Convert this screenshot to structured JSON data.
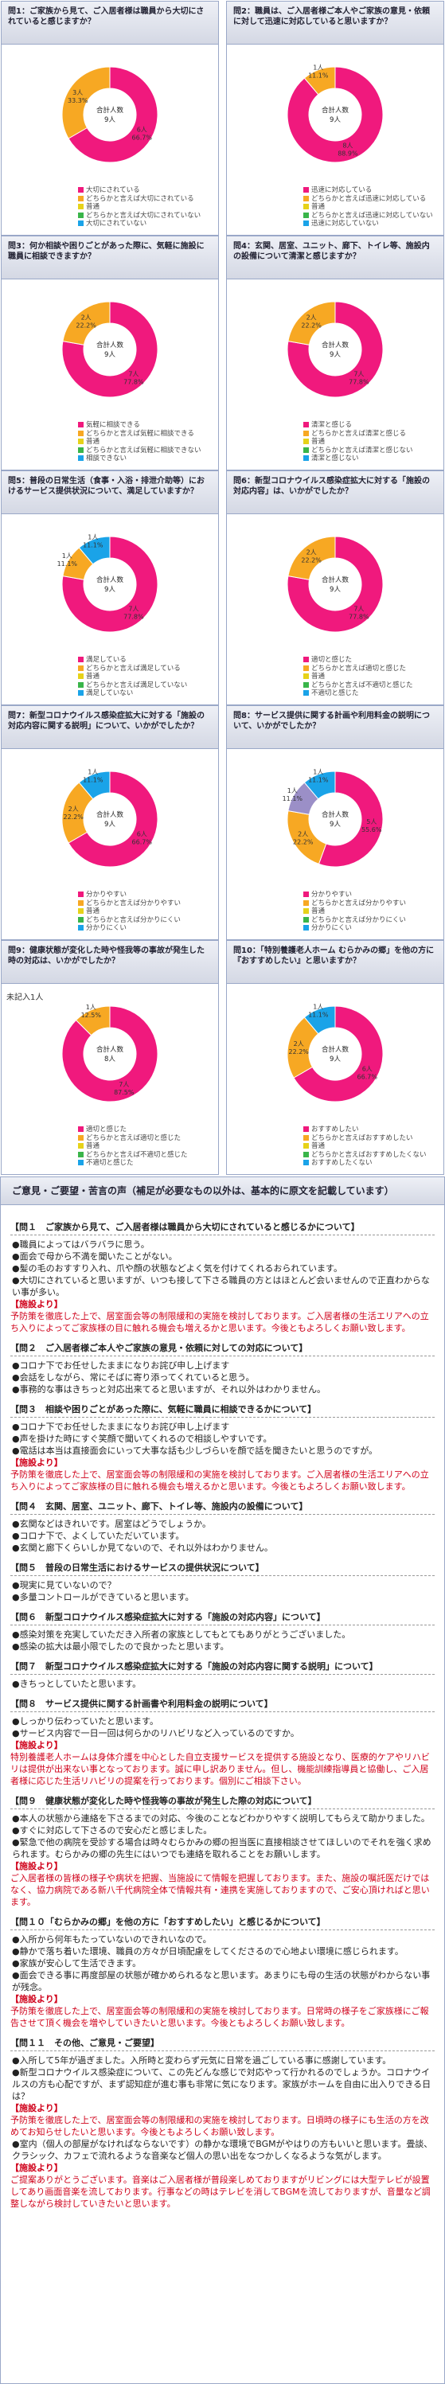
{
  "colors": {
    "magenta": "#f0197d",
    "orange": "#f7a823",
    "yellow": "#e6d219",
    "blue": "#1aa3e8",
    "green": "#3ab54a",
    "purple": "#9b8fc7",
    "gray": "#bbbbbb"
  },
  "center_label": {
    "line1": "合計人数",
    "unit": "人"
  },
  "cards": [
    {
      "title": "問1：ご家族から見て、ご入居者様は職員から大切にされていると感じますか？",
      "total": "9人",
      "slices": [
        {
          "n": "6人",
          "p": "66.7%",
          "v": 6,
          "c": "magenta"
        },
        {
          "n": "3人",
          "p": "33.3%",
          "v": 3,
          "c": "orange"
        }
      ],
      "legend": [
        "大切にされている",
        "どちらかと言えば大切にされている",
        "普通",
        "どちらかと言えば大切にされていない",
        "大切にされていない"
      ],
      "legend_colors": [
        "magenta",
        "orange",
        "yellow",
        "green",
        "blue"
      ]
    },
    {
      "title": "問2：職員は、ご入居者様ご本人やご家族の意見・依頼に対して迅速に対応していると思いますか？",
      "total": "9人",
      "slices": [
        {
          "n": "8人",
          "p": "88.9%",
          "v": 8,
          "c": "magenta"
        },
        {
          "n": "1人",
          "p": "11.1%",
          "v": 1,
          "c": "orange"
        }
      ],
      "legend": [
        "迅速に対応している",
        "どちらかと言えば迅速に対応している",
        "普通",
        "どちらかと言えば迅速に対応していない",
        "迅速に対応していない"
      ],
      "legend_colors": [
        "magenta",
        "orange",
        "yellow",
        "green",
        "blue"
      ]
    },
    {
      "title": "問3：何か相談や困りごとがあった際に、気軽に施設に職員に相談できますか？",
      "total": "9人",
      "slices": [
        {
          "n": "7人",
          "p": "77.8%",
          "v": 7,
          "c": "magenta"
        },
        {
          "n": "2人",
          "p": "22.2%",
          "v": 2,
          "c": "orange"
        }
      ],
      "legend": [
        "気軽に相談できる",
        "どちらかと言えば気軽に相談できる",
        "普通",
        "どちらかと言えば気軽に相談できない",
        "相談できない"
      ],
      "legend_colors": [
        "magenta",
        "orange",
        "yellow",
        "green",
        "blue"
      ]
    },
    {
      "title": "問4：玄関、居室、ユニット、廊下、トイレ等、施設内の設備について清潔と感じますか？",
      "total": "9人",
      "slices": [
        {
          "n": "7人",
          "p": "77.8%",
          "v": 7,
          "c": "magenta"
        },
        {
          "n": "2人",
          "p": "22.2%",
          "v": 2,
          "c": "orange"
        }
      ],
      "legend": [
        "清潔と感じる",
        "どちらかと言えば清潔と感じる",
        "普通",
        "どちらかと言えば清潔と感じない",
        "清潔と感じない"
      ],
      "legend_colors": [
        "magenta",
        "orange",
        "yellow",
        "green",
        "blue"
      ]
    },
    {
      "title": "問5：普段の日常生活（食事・入浴・排泄介助等）におけるサービス提供状況について、満足していますか？",
      "total": "9人",
      "slices": [
        {
          "n": "7人",
          "p": "77.8%",
          "v": 7,
          "c": "magenta"
        },
        {
          "n": "1人",
          "p": "11.1%",
          "v": 1,
          "c": "orange"
        },
        {
          "n": "1人",
          "p": "11.1%",
          "v": 1,
          "c": "blue"
        }
      ],
      "legend": [
        "満足している",
        "どちらかと言えば満足している",
        "普通",
        "どちらかと言えば満足していない",
        "満足していない"
      ],
      "legend_colors": [
        "magenta",
        "orange",
        "yellow",
        "green",
        "blue"
      ]
    },
    {
      "title": "問6：新型コロナウイルス感染症拡大に対する「施設の対応内容」は、いかがでしたか？",
      "total": "9人",
      "slices": [
        {
          "n": "7人",
          "p": "77.8%",
          "v": 7,
          "c": "magenta"
        },
        {
          "n": "2人",
          "p": "22.2%",
          "v": 2,
          "c": "orange"
        }
      ],
      "legend": [
        "適切と感じた",
        "どちらかと言えば適切と感じた",
        "普通",
        "どちらかと言えば不適切と感じた",
        "不適切と感じた"
      ],
      "legend_colors": [
        "magenta",
        "orange",
        "yellow",
        "green",
        "blue"
      ]
    },
    {
      "title": "問7：新型コロナウイルス感染症拡大に対する「施設の対応内容に関する説明」について、いかがでしたか？",
      "total": "9人",
      "slices": [
        {
          "n": "6人",
          "p": "66.7%",
          "v": 6,
          "c": "magenta"
        },
        {
          "n": "2人",
          "p": "22.2%",
          "v": 2,
          "c": "orange"
        },
        {
          "n": "1人",
          "p": "11.1%",
          "v": 1,
          "c": "blue"
        }
      ],
      "legend": [
        "分かりやすい",
        "どちらかと言えば分かりやすい",
        "普通",
        "どちらかと言えば分かりにくい",
        "分かりにくい"
      ],
      "legend_colors": [
        "magenta",
        "orange",
        "yellow",
        "green",
        "blue"
      ]
    },
    {
      "title": "問8：サービス提供に関する計画や利用料金の説明について、いかがでしたか？",
      "total": "9人",
      "slices": [
        {
          "n": "5人",
          "p": "55.6%",
          "v": 5,
          "c": "magenta"
        },
        {
          "n": "2人",
          "p": "22.2%",
          "v": 2,
          "c": "orange"
        },
        {
          "n": "1人",
          "p": "11.1%",
          "v": 1,
          "c": "purple"
        },
        {
          "n": "1人",
          "p": "11.1%",
          "v": 1,
          "c": "blue"
        }
      ],
      "legend": [
        "分かりやすい",
        "どちらかと言えば分かりやすい",
        "普通",
        "どちらかと言えば分かりにくい",
        "分かりにくい"
      ],
      "legend_colors": [
        "magenta",
        "orange",
        "yellow",
        "green",
        "blue"
      ]
    },
    {
      "title": "問9：健康状態が変化した時や怪我等の事故が発生した時の対応は、いかがでしたか？",
      "total": "8人",
      "slices": [
        {
          "n": "7人",
          "p": "87.5%",
          "v": 7,
          "c": "magenta"
        },
        {
          "n": "1人",
          "p": "12.5%",
          "v": 1,
          "c": "orange"
        }
      ],
      "legend": [
        "適切と感じた",
        "どちらかと言えば適切と感じた",
        "普通",
        "どちらかと言えば不適切と感じた",
        "不適切と感じた"
      ],
      "legend_colors": [
        "magenta",
        "orange",
        "yellow",
        "green",
        "blue"
      ]
    },
    {
      "title": "問10：「特別養護老人ホーム むらかみの郷」を他の方に『おすすめしたい』と思いますか？",
      "total": "9人",
      "slices": [
        {
          "n": "6人",
          "p": "66.7%",
          "v": 6,
          "c": "magenta"
        },
        {
          "n": "2人",
          "p": "22.2%",
          "v": 2,
          "c": "orange"
        },
        {
          "n": "1人",
          "p": "11.1%",
          "v": 1,
          "c": "blue"
        }
      ],
      "legend": [
        "おすすめしたい",
        "どちらかと言えばおすすめしたい",
        "普通",
        "どちらかと言えばおすすめしたくない",
        "おすすめしたくない"
      ],
      "legend_colors": [
        "magenta",
        "orange",
        "yellow",
        "green",
        "blue"
      ]
    }
  ],
  "unanswered": "未記入1人",
  "comments_title": "ご意見・ご要望・苦言の声（補足が必要なもの以外は、基本的に原文を記載しています）",
  "sections": [
    {
      "q": "【問１　ご家族から見て、ご入居者様は職員から大切にされていると感じるかについて】",
      "items": [
        "●職員によってはバラバラに思う。",
        "●面会で母から不満を聞いたことがない。",
        "●髪の毛のおすすり入れ、爪や顔の状態などよく気を付けてくれるおられています。",
        "●大切にされていると思いますが、いつも接して下さる職員の方とはほとんど会いませんので正直わからない事が多い。"
      ],
      "reply": "予防策を徹底した上で、居室面会等の制限緩和の実施を検討しております。ご入居者様の生活エリアへの立ち入りによってご家族様の目に触れる機会も増えるかと思います。今後ともよろしくお願い致します。"
    },
    {
      "q": "【問２　ご入居者様ご本人やご家族の意見・依頼に対しての対応について】",
      "items": [
        "●コロナ下でお任せしたままになりお詫び申し上げます",
        "●会話をしながら、常にそばに寄り添ってくれていると思う。",
        "●事務的な事はきちっと対応出来てると思いますが、それ以外はわかりません。"
      ],
      "reply": ""
    },
    {
      "q": "【問３　相談や困りごとがあった際に、気軽に職員に相談できるかについて】",
      "items": [
        "●コロナ下でお任せしたままになりお詫び申し上げます",
        "●声を掛けた時にすぐ笑顔で聞いてくれるので相談しやすいです。",
        "●電話は本当は直接面会にいって大事な話も少しづらいを顔で話を聞きたいと思うのですが。"
      ],
      "reply": "予防策を徹底した上で、居室面会等の制限緩和の実施を検討しております。ご入居者様の生活エリアへの立ち入りによってご家族様の目に触れる機会も増えるかと思います。今後ともよろしくお願い致します。"
    },
    {
      "q": "【問４　玄関、居室、ユニット、廊下、トイレ等、施設内の設備について】",
      "items": [
        "●玄関などはきれいです。居室はどうでしょうか。",
        "●コロナ下で、よくしていただいています。",
        "●玄関と廊下くらいしか見てないので、それ以外はわかりません。"
      ],
      "reply": ""
    },
    {
      "q": "【問５　普段の日常生活におけるサービスの提供状況について】",
      "items": [
        "●現実に見ていないので？",
        "●多量コントロールができていると思います。"
      ],
      "reply": ""
    },
    {
      "q": "【問６　新型コロナウイルス感染症拡大に対する「施設の対応内容」について】",
      "items": [
        "●感染対策を充実していただき入所者の家族としてもとてもありがとうございました。",
        "●感染の拡大は最小限でしたので良かったと思います。"
      ],
      "reply": ""
    },
    {
      "q": "【問７　新型コロナウイルス感染症拡大に対する「施設の対応内容に関する説明」について】",
      "items": [
        "●きちっとしていたと思います。"
      ],
      "reply": ""
    },
    {
      "q": "【問８　サービス提供に関する計画書や利用料金の説明について】",
      "items": [
        "●しっかり伝わっていたと思います。",
        "●サービス内容で一日一回は何らかのリハビリなど入っているのですか。"
      ],
      "reply": "特別養護老人ホームは身体介護を中心とした自立支援サービスを提供する施設となり、医療的ケアやリハビリは提供が出来ない事となっております。誠に申し訳ありません。但し、機能訓練指導員と協働し、ご入居者様に応じた生活リハビリの提案を行っております。個別にご相談下さい。"
    },
    {
      "q": "【問９　健康状態が変化した時や怪我等の事故が発生した際の対応について】",
      "items": [
        "●本人の状態から連絡を下さるまでの対応、今後のことなどわかりやすく説明してもらえて助かりました。",
        "●すぐに対応して下さるので安心だと感じました。",
        "●緊急で他の病院を受診する場合は時々むらかみの郷の担当医に直接相談させてほしいのでそれを強く求められます。むらかみの郷の先生にはいつでも連絡を取れることをお願いします。"
      ],
      "reply": "ご入居者様の皆様の様子や病状を把握、当施設にて情報を把握しております。また、施設の嘱託医だけではなく、協力病院である新八千代病院全体で情報共有・連携を実施しておりますので、ご安心頂ければと思います。"
    },
    {
      "q": "【問１０「むらかみの郷」を他の方に「おすすめしたい」と感じるかについて】",
      "items": [
        "●入所から何年もたっていないのできれいなので。",
        "●静かで落ち着いた環境、職員の方々が日頃配慮をしてくださるので心地よい環境に感じられます。",
        "●家族が安心して生活できます。",
        "●面会できる事に再度部屋の状態が確かめられるなと思います。あまりにも母の生活の状態がわからない事が残念。"
      ],
      "reply": "予防策を徹底した上で、居室面会等の制限緩和の実施を検討しております。日常時の様子をご家族様にご報告させて頂く機会を増やしていきたいと思います。今後ともよろしくお願い致します。"
    },
    {
      "q": "【問１１　その他、ご意見・ご要望】",
      "items": [
        "●入所して5年が過ぎました。入所時と変わらず元気に日常を過ごしている事に感謝しています。",
        "●新型コロナウイルス感染症について、この先どんな感じで対応やって行かれるのでしょうか。コロナウイルスの方も心配ですが、まず認知症が進む事も非常に気になります。家族がホームを自由に出入りできる日は？"
      ],
      "reply": "予防策を徹底した上で、居室面会等の制限緩和の実施を検討しております。日頃時の様子にも生活の方を改めてお知らせしたいと思います。今後ともよろしくお願い致します。",
      "items2": [
        "●室内（個人の部屋がなければならないです）の静かな環境でBGMがやはりの方もいいと思います。畳談、クラシック、カフェで流れるような音楽など個人の思い出をなつかしくなるような気がします。"
      ],
      "reply2": "ご提案ありがとうございます。音楽はご入居者様が普段楽しめておりますがリビングには大型テレビが設置してあり画面音楽を流しております。行事などの時はテレビを消してBGMを流しておりますが、音量など調整しながら検討していきたいと思います。"
    }
  ],
  "reply_label": "【施設より】"
}
